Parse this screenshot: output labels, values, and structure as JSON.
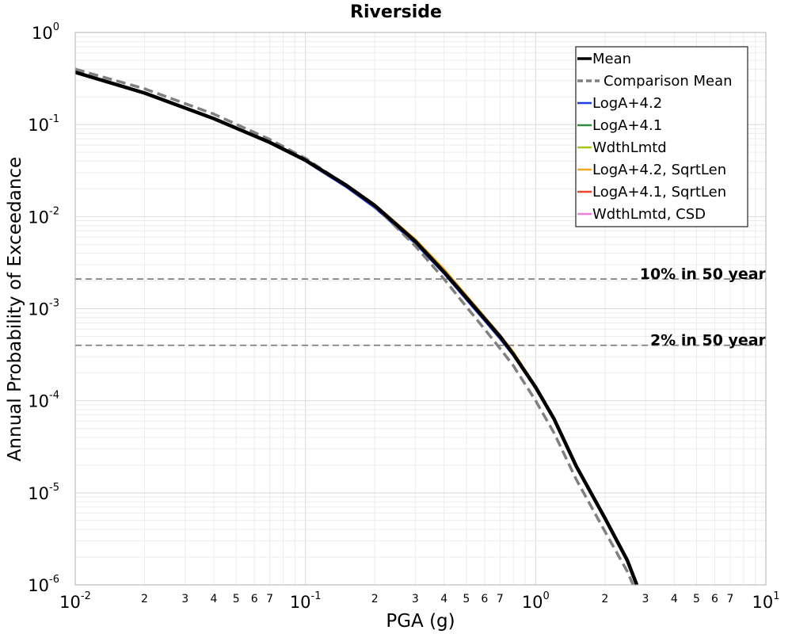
{
  "chart_data": {
    "type": "line",
    "title": "Riverside",
    "xlabel": "PGA (g)",
    "ylabel": "Annual Probability of Exceedance",
    "x_scale": "log",
    "y_scale": "log",
    "xlim": [
      0.01,
      10
    ],
    "ylim": [
      1e-06,
      1
    ],
    "grid": true,
    "legend_position": "top-right",
    "x_major_ticks": [
      {
        "value": 0.01,
        "base": "10",
        "exp": "-2"
      },
      {
        "value": 0.1,
        "base": "10",
        "exp": "-1"
      },
      {
        "value": 1,
        "base": "10",
        "exp": "0"
      },
      {
        "value": 10,
        "base": "10",
        "exp": "1"
      }
    ],
    "x_minor_labels": [
      "2",
      "3",
      "4",
      "5",
      "6",
      "7"
    ],
    "y_major_ticks": [
      {
        "value": 1,
        "base": "10",
        "exp": "0"
      },
      {
        "value": 0.1,
        "base": "10",
        "exp": "-1"
      },
      {
        "value": 0.01,
        "base": "10",
        "exp": "-2"
      },
      {
        "value": 0.001,
        "base": "10",
        "exp": "-3"
      },
      {
        "value": 0.0001,
        "base": "10",
        "exp": "-4"
      },
      {
        "value": 1e-05,
        "base": "10",
        "exp": "-5"
      },
      {
        "value": 1e-06,
        "base": "10",
        "exp": "-6"
      }
    ],
    "reference_lines": [
      {
        "label": "10% in 50 year",
        "y": 0.0021,
        "color": "#777777"
      },
      {
        "label": "2% in 50 year",
        "y": 0.0004,
        "color": "#777777"
      }
    ],
    "series": [
      {
        "name": "LogA+4.2",
        "color": "#1f3de0",
        "style": "solid",
        "width": 2.5,
        "x": [
          0.01,
          0.02,
          0.04,
          0.07,
          0.1,
          0.15,
          0.2,
          0.3,
          0.4,
          0.5,
          0.6,
          0.7,
          0.8,
          1.0,
          1.2,
          1.5,
          2.0,
          2.5,
          2.75
        ],
        "y": [
          0.37,
          0.22,
          0.115,
          0.063,
          0.04,
          0.021,
          0.0125,
          0.0051,
          0.0024,
          0.00125,
          0.00074,
          0.00047,
          0.00031,
          0.000135,
          6.2e-05,
          1.9e-05,
          5.2e-06,
          1.8e-06,
          1e-06
        ]
      },
      {
        "name": "LogA+4.1",
        "color": "#2e8b3c",
        "style": "solid",
        "width": 2.5,
        "x": [
          0.01,
          0.02,
          0.04,
          0.07,
          0.1,
          0.15,
          0.2,
          0.3,
          0.4,
          0.5,
          0.6,
          0.7,
          0.8,
          1.0,
          1.2,
          1.5,
          2.0,
          2.5,
          2.75
        ],
        "y": [
          0.37,
          0.22,
          0.116,
          0.064,
          0.041,
          0.022,
          0.013,
          0.0053,
          0.0025,
          0.00131,
          0.00077,
          0.00049,
          0.00032,
          0.00014,
          6.4e-05,
          1.95e-05,
          5.3e-06,
          1.85e-06,
          1e-06
        ]
      },
      {
        "name": "WdthLmtd",
        "color": "#a8c814",
        "style": "solid",
        "width": 2.5,
        "x": [
          0.01,
          0.02,
          0.04,
          0.07,
          0.1,
          0.15,
          0.2,
          0.3,
          0.4,
          0.5,
          0.6,
          0.7,
          0.8,
          1.0,
          1.2,
          1.5,
          2.0,
          2.5,
          2.75
        ],
        "y": [
          0.37,
          0.22,
          0.116,
          0.064,
          0.041,
          0.022,
          0.0133,
          0.0055,
          0.0026,
          0.00135,
          0.0008,
          0.0005,
          0.00033,
          0.000142,
          6.5e-05,
          2e-05,
          5.4e-06,
          1.9e-06,
          1e-06
        ]
      },
      {
        "name": "LogA+4.2, SqrtLen",
        "color": "#f5a623",
        "style": "solid",
        "width": 2.5,
        "x": [
          0.01,
          0.02,
          0.04,
          0.07,
          0.1,
          0.15,
          0.2,
          0.3,
          0.4,
          0.5,
          0.6,
          0.7,
          0.8,
          1.0,
          1.2,
          1.5,
          2.0,
          2.5,
          2.75
        ],
        "y": [
          0.37,
          0.22,
          0.117,
          0.065,
          0.042,
          0.0225,
          0.0136,
          0.0057,
          0.0027,
          0.0014,
          0.00082,
          0.00052,
          0.00034,
          0.000145,
          6.6e-05,
          2e-05,
          5.5e-06,
          1.9e-06,
          1e-06
        ]
      },
      {
        "name": "LogA+4.1, SqrtLen",
        "color": "#e8472a",
        "style": "solid",
        "width": 2.5,
        "x": [
          0.01,
          0.02,
          0.04,
          0.07,
          0.1,
          0.15,
          0.2,
          0.3,
          0.4,
          0.5,
          0.6,
          0.7,
          0.8,
          1.0,
          1.2,
          1.5,
          2.0,
          2.5,
          2.75
        ],
        "y": [
          0.37,
          0.22,
          0.116,
          0.064,
          0.041,
          0.022,
          0.0132,
          0.0054,
          0.0025,
          0.00132,
          0.00078,
          0.0005,
          0.00032,
          0.00014,
          6.4e-05,
          1.95e-05,
          5.3e-06,
          1.85e-06,
          1e-06
        ]
      },
      {
        "name": "WdthLmtd, CSD",
        "color": "#f080e0",
        "style": "solid",
        "width": 2.5,
        "x": [
          0.01,
          0.02,
          0.04,
          0.07,
          0.1,
          0.15,
          0.2,
          0.3,
          0.4,
          0.5,
          0.6,
          0.7,
          0.8,
          1.0,
          1.2,
          1.5,
          2.0,
          2.5,
          2.75
        ],
        "y": [
          0.37,
          0.22,
          0.116,
          0.064,
          0.041,
          0.022,
          0.013,
          0.0053,
          0.0025,
          0.0013,
          0.00077,
          0.00049,
          0.00032,
          0.00014,
          6.4e-05,
          1.95e-05,
          5.3e-06,
          1.85e-06,
          1e-06
        ]
      },
      {
        "name": "Comparison Mean",
        "color": "#808080",
        "style": "dashed",
        "width": 3.5,
        "x": [
          0.01,
          0.02,
          0.04,
          0.07,
          0.1,
          0.15,
          0.2,
          0.3,
          0.4,
          0.5,
          0.6,
          0.7,
          0.8,
          1.0,
          1.2,
          1.5,
          2.0,
          2.5,
          2.65
        ],
        "y": [
          0.4,
          0.245,
          0.13,
          0.069,
          0.043,
          0.022,
          0.013,
          0.0048,
          0.0021,
          0.00105,
          0.0006,
          0.00037,
          0.00024,
          0.0001,
          4.5e-05,
          1.4e-05,
          3.8e-06,
          1.4e-06,
          1e-06
        ]
      },
      {
        "name": "Mean",
        "color": "#000000",
        "style": "solid",
        "width": 4.5,
        "x": [
          0.01,
          0.02,
          0.04,
          0.07,
          0.1,
          0.15,
          0.2,
          0.3,
          0.4,
          0.5,
          0.6,
          0.7,
          0.8,
          1.0,
          1.2,
          1.5,
          2.0,
          2.5,
          2.75
        ],
        "y": [
          0.37,
          0.22,
          0.116,
          0.064,
          0.041,
          0.022,
          0.0132,
          0.0054,
          0.0025,
          0.00132,
          0.00078,
          0.0005,
          0.00032,
          0.00014,
          6.4e-05,
          1.95e-05,
          5.3e-06,
          1.85e-06,
          1e-06
        ]
      }
    ],
    "legend_order": [
      "Mean",
      "Comparison Mean",
      "LogA+4.2",
      "LogA+4.1",
      "WdthLmtd",
      "LogA+4.2, SqrtLen",
      "LogA+4.1, SqrtLen",
      "WdthLmtd, CSD"
    ]
  }
}
